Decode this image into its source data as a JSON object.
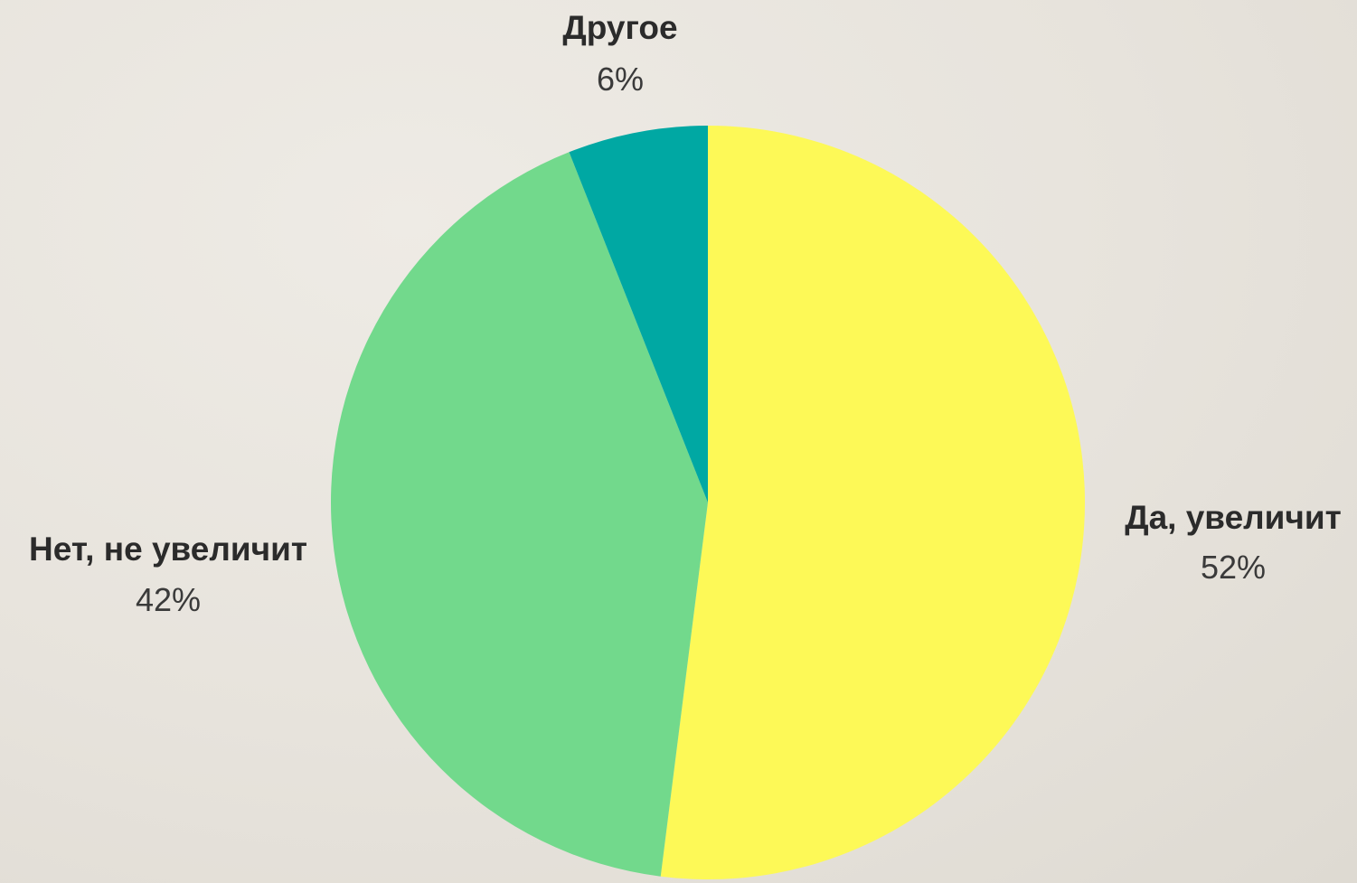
{
  "chart_data": {
    "type": "pie",
    "title": "",
    "slices": [
      {
        "label": "Да, увеличит",
        "value": 52,
        "value_label": "52%",
        "color": "#fdf957"
      },
      {
        "label": "Нет, не увеличит",
        "value": 42,
        "value_label": "42%",
        "color": "#72d98c"
      },
      {
        "label": "Другое",
        "value": 6,
        "value_label": "6%",
        "color": "#00a8a3"
      }
    ],
    "start_angle": "12 o'clock",
    "direction": "clockwise",
    "legend": "none",
    "labels": "outside, name and percentage"
  },
  "colors": {
    "background": "#e9e6df",
    "label_text": "#2b2b2b"
  }
}
